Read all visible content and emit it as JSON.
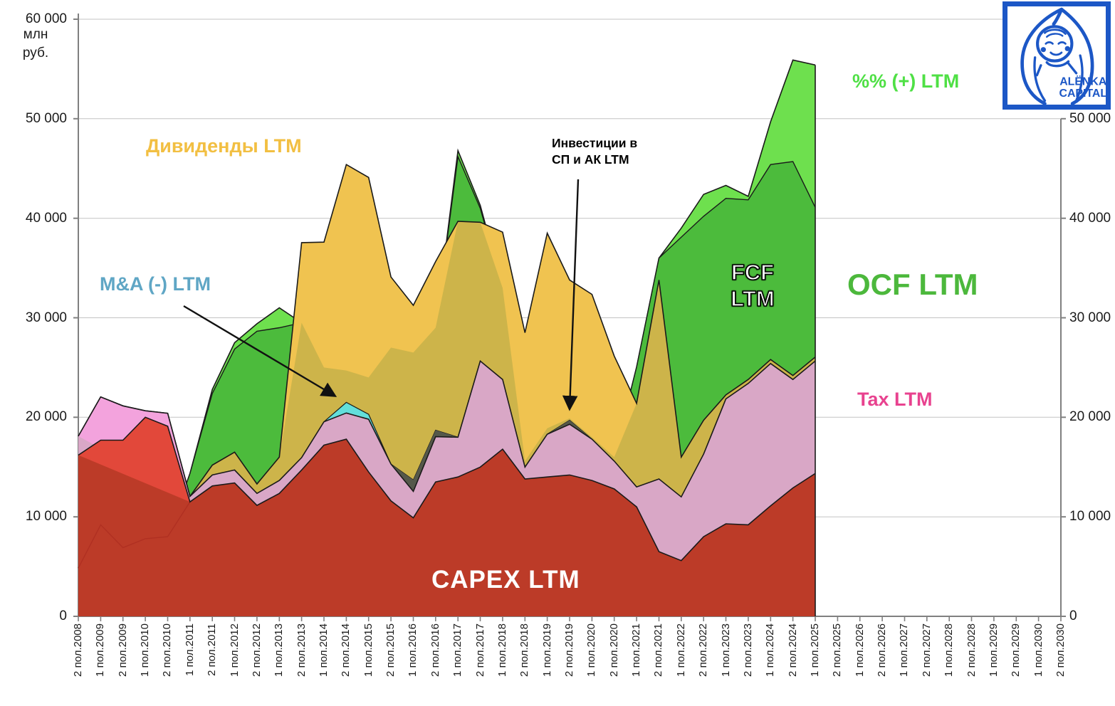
{
  "chart_data": {
    "type": "area",
    "title": "",
    "unit_label_lines": [
      "млн",
      "руб."
    ],
    "y_axis_left_labels": [
      "60 000",
      "50 000",
      "40 000",
      "30 000",
      "20 000",
      "10 000",
      "0"
    ],
    "y_axis_right_labels": [
      "50 000",
      "40 000",
      "30 000",
      "20 000",
      "10 000",
      "0"
    ],
    "ylim": [
      0,
      60000
    ],
    "grid": true,
    "x_labels": [
      "2 пол.2008",
      "1 пол.2009",
      "2 пол.2009",
      "1 пол.2010",
      "2 пол.2010",
      "1 пол.2011",
      "2 пол.2011",
      "1 пол.2012",
      "2 пол.2012",
      "1 пол.2013",
      "2 пол.2013",
      "1 пол.2014",
      "2 пол.2014",
      "1 пол.2015",
      "2 пол.2015",
      "1 пол.2016",
      "2 пол.2016",
      "1 пол.2017",
      "2 пол.2017",
      "1 пол.2018",
      "2 пол.2018",
      "1 пол.2019",
      "2 пол.2019",
      "1 пол.2020",
      "2 пол.2020",
      "1 пол.2021",
      "2 пол.2021",
      "1 пол.2022",
      "2 пол.2022",
      "1 пол.2023",
      "2 пол.2023",
      "1 пол.2024",
      "2 пол.2024",
      "1 пол.2025",
      "2 пол.2025",
      "1 пол.2026",
      "2 пол.2026",
      "1 пол.2027",
      "2 пол.2027",
      "1 пол.2028",
      "2 пол.2028",
      "1 пол.2029",
      "2 пол.2029",
      "1 пол.2030",
      "2 пол.2030"
    ],
    "data_points": 34,
    "series": {
      "capex_ltm": [
        16200,
        17700,
        17700,
        20000,
        19100,
        11500,
        13100,
        13400,
        11150,
        12350,
        14700,
        17200,
        17800,
        14500,
        11600,
        9900,
        13500,
        14000,
        15000,
        16800,
        13800,
        14000,
        14200,
        13650,
        12800,
        11000,
        6500,
        5600,
        8000,
        9300,
        9200,
        11100,
        12900,
        14350
      ],
      "tax_top": [
        18100,
        22050,
        21150,
        20650,
        20400,
        12050,
        14200,
        14700,
        12350,
        13650,
        15950,
        19550,
        20430,
        19800,
        15300,
        12550,
        18050,
        18000,
        25650,
        23800,
        15000,
        18300,
        19300,
        17800,
        15600,
        13000,
        13800,
        12000,
        16300,
        21850,
        23400,
        25400,
        23800,
        25650
      ],
      "invest_top": [
        18100,
        22050,
        21150,
        20650,
        20400,
        12050,
        14200,
        14700,
        12350,
        13650,
        15950,
        19550,
        20430,
        19800,
        15300,
        13700,
        18700,
        18000,
        25650,
        23800,
        15000,
        18300,
        19700,
        17800,
        15600,
        13000,
        13800,
        12000,
        16300,
        21850,
        23400,
        25400,
        23800,
        25650
      ],
      "mna_top": [
        18100,
        22050,
        21150,
        20650,
        20400,
        12050,
        14200,
        14700,
        12350,
        13650,
        15950,
        19550,
        21500,
        20300,
        15300,
        13700,
        18700,
        18000,
        25650,
        23800,
        15000,
        18300,
        19700,
        17800,
        15600,
        13000,
        13800,
        12000,
        16300,
        21850,
        23400,
        25400,
        23800,
        25650
      ],
      "dividends_top": [
        18100,
        22050,
        21150,
        20650,
        20400,
        12050,
        15200,
        16500,
        13300,
        16000,
        37550,
        37600,
        45400,
        44100,
        34100,
        31250,
        35650,
        39700,
        39600,
        38600,
        28500,
        38500,
        33800,
        32350,
        26150,
        21400,
        33800,
        16000,
        19700,
        22250,
        23800,
        25800,
        24200,
        26050
      ],
      "ocf_ltm_top": [
        4850,
        9200,
        6900,
        7800,
        8000,
        14350,
        22400,
        26850,
        28650,
        29000,
        29500,
        25000,
        24700,
        24000,
        27000,
        26500,
        29000,
        46200,
        41000,
        33000,
        15600,
        18900,
        19900,
        18000,
        16000,
        25050,
        36000,
        38100,
        40200,
        42000,
        41850,
        45400,
        45700,
        41100
      ],
      "pct_plus_top": [
        4850,
        9200,
        6900,
        7800,
        8000,
        14350,
        22800,
        27500,
        29400,
        31000,
        29500,
        25000,
        24700,
        24000,
        27000,
        26500,
        29000,
        46800,
        41300,
        33000,
        15600,
        18900,
        19900,
        18000,
        16000,
        25050,
        36000,
        39000,
        42400,
        43300,
        42200,
        49700,
        55900,
        55400
      ]
    },
    "series_legend": {
      "capex": "CAPEX LTM",
      "tax": "Tax LTM",
      "dividends": "Дивиденды LTM",
      "ocf": "OCF LTM",
      "fcf": "FCF LTM",
      "pct": "%% (+) LTM",
      "mna": "M&A (-) LTM",
      "invest": "Инвестиции в СП и АК LTM"
    },
    "colors": {
      "capex": "#BC3B28",
      "capex_bright": "#E2483A",
      "tax": "#D9A7C6",
      "tax_bright": "#F3A3DD",
      "div_olive": "#CDB44A",
      "div_gold": "#F0C350",
      "ocf": "#4CBB3C",
      "pct": "#6EE04E",
      "mna": "#63DFDB",
      "invest": "#55584A",
      "outline": "#1a1a1a",
      "grid": "#c3c3c3",
      "axis": "#808080"
    },
    "legend_position": "overlay-annotations"
  },
  "annotations": {
    "dividends": "Дивиденды LTM",
    "mna": "M&A (-) LTM",
    "invest_line1": "Инвестиции в",
    "invest_line2": "СП и АК LTM",
    "pct": "%% (+) LTM",
    "ocf": "OCF LTM",
    "tax": "Tax LTM",
    "fcf_line1": "FCF",
    "fcf_line2": "LTM",
    "capex": "CAPEX LTM"
  },
  "logo": {
    "line1": "ALËNKA",
    "line2": "CAPITAL"
  }
}
